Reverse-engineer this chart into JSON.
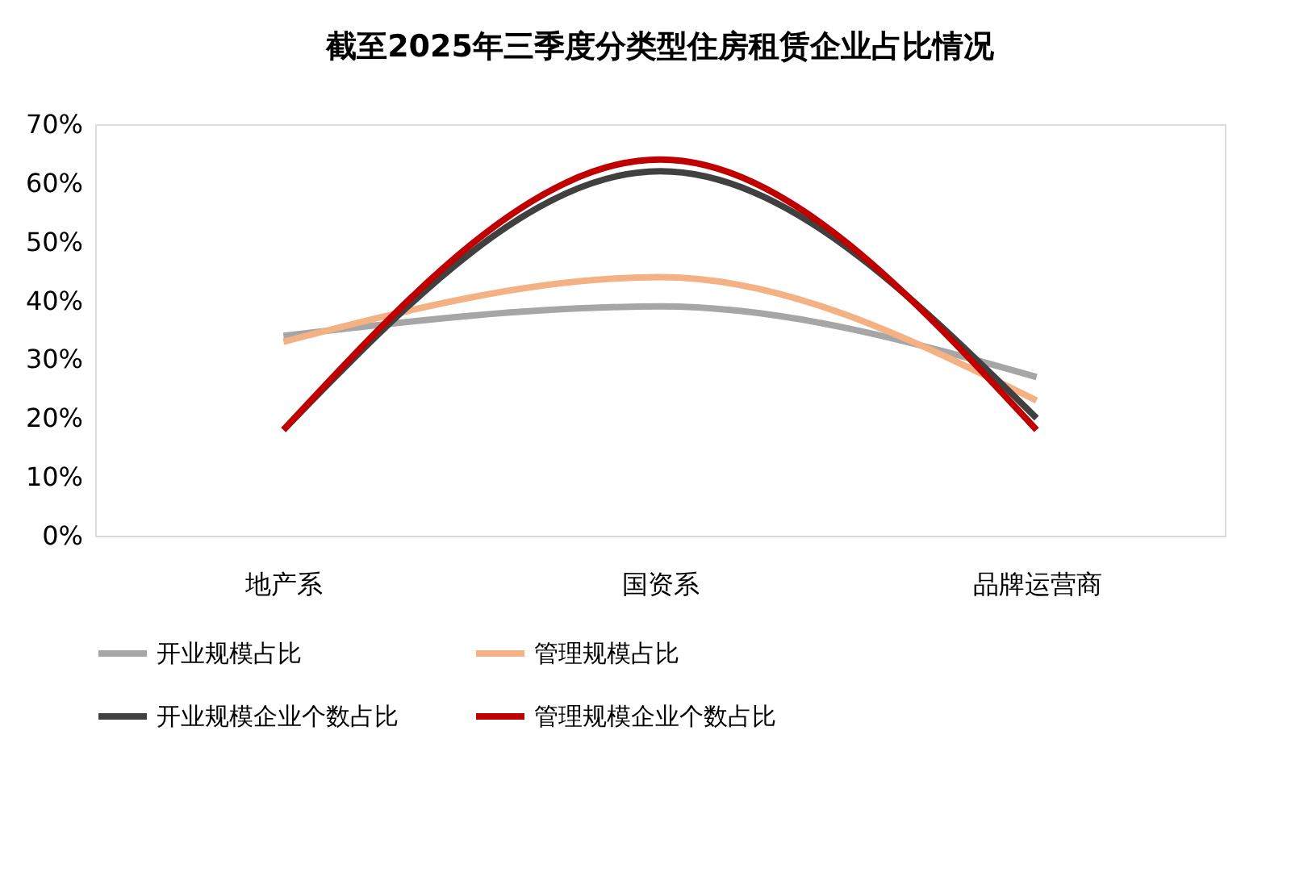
{
  "chart_data": {
    "type": "line",
    "title": "截至2025年三季度分类型住房租赁企业占比情况",
    "categories": [
      "地产系",
      "国资系",
      "品牌运营商"
    ],
    "series": [
      {
        "name": "开业规模占比",
        "color": "#a6a6a6",
        "values": [
          34,
          39,
          27
        ]
      },
      {
        "name": "管理规模占比",
        "color": "#f4b183",
        "values": [
          33,
          44,
          23
        ]
      },
      {
        "name": "开业规模企业个数占比",
        "color": "#404040",
        "values": [
          18,
          62,
          20
        ]
      },
      {
        "name": "管理规模企业个数占比",
        "color": "#c00000",
        "values": [
          18,
          64,
          18
        ]
      }
    ],
    "ylim": [
      0,
      70
    ],
    "yticks": [
      {
        "value": 0,
        "label": "0%"
      },
      {
        "value": 10,
        "label": "10%"
      },
      {
        "value": 20,
        "label": "20%"
      },
      {
        "value": 30,
        "label": "30%"
      },
      {
        "value": 40,
        "label": "40%"
      },
      {
        "value": 50,
        "label": "50%"
      },
      {
        "value": 60,
        "label": "60%"
      },
      {
        "value": 70,
        "label": "70%"
      }
    ],
    "grid": false,
    "legend": "bottom",
    "marker": "none",
    "line_style": "solid"
  }
}
